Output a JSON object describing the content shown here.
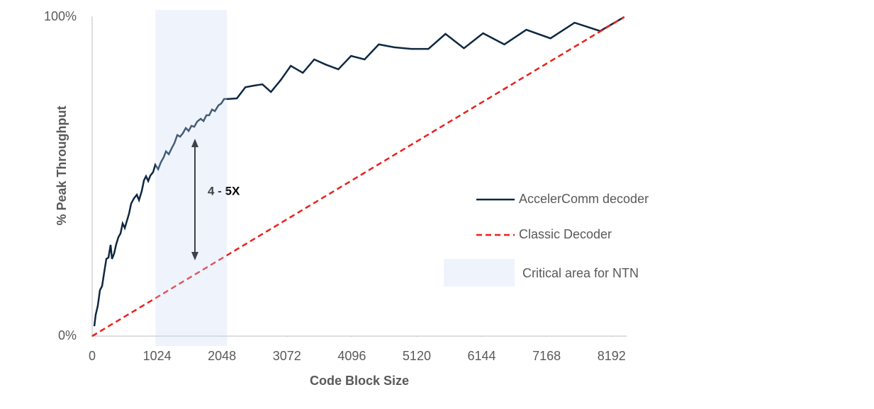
{
  "chart_data": {
    "type": "line",
    "x_label": "Code Block Size",
    "y_label": "% Peak Throughput",
    "xlim": [
      0,
      8430
    ],
    "ylim": [
      0,
      100
    ],
    "xticks": [
      0,
      1024,
      2048,
      3072,
      4096,
      5120,
      6144,
      7168,
      8192
    ],
    "yticks": [
      {
        "value": 0,
        "label": "0%"
      },
      {
        "value": 100,
        "label": "100%"
      }
    ],
    "annotation": "4 - 5X",
    "highlight": {
      "name": "Critical area for NTN",
      "xlim": [
        1000,
        2125
      ],
      "color": "#c9dbf6"
    },
    "series": [
      {
        "name": "AccelerComm decoder",
        "color": "#0e2841",
        "dash": false,
        "x": [
          34,
          56,
          89,
          123,
          157,
          190,
          224,
          257,
          291,
          313,
          347,
          380,
          414,
          448,
          481,
          515,
          548,
          582,
          615,
          660,
          705,
          739,
          783,
          817,
          850,
          884,
          918,
          962,
          996,
          1041,
          1085,
          1130,
          1164,
          1209,
          1253,
          1298,
          1343,
          1388,
          1432,
          1477,
          1522,
          1567,
          1611,
          1656,
          1712,
          1757,
          1802,
          1846,
          1891,
          1936,
          1992,
          2037,
          2081,
          2148,
          2283,
          2417,
          2551,
          2686,
          2820,
          2977,
          3133,
          3323,
          3503,
          3682,
          3883,
          4084,
          4297,
          4521,
          4767,
          5036,
          5304,
          5573,
          5864,
          6166,
          6501,
          6848,
          7229,
          7609,
          8012,
          8393
        ],
        "values": [
          3.1,
          6.7,
          9.5,
          14.4,
          15.7,
          20.0,
          24.2,
          24.6,
          28.6,
          24.2,
          25.9,
          28.8,
          31.0,
          32.2,
          35.3,
          33.9,
          36.1,
          38.4,
          41.5,
          43.2,
          44.3,
          42.6,
          45.5,
          48.8,
          50.1,
          48.6,
          50.3,
          51.4,
          53.7,
          52.3,
          54.5,
          56.1,
          57.9,
          57.0,
          58.8,
          60.5,
          63.0,
          62.5,
          63.6,
          65.2,
          64.3,
          65.9,
          65.6,
          67.2,
          68.1,
          67.4,
          69.2,
          69.2,
          71.0,
          70.5,
          72.3,
          72.9,
          74.3,
          74.3,
          74.5,
          78.0,
          78.5,
          78.9,
          76.5,
          80.3,
          84.7,
          82.5,
          86.7,
          85.1,
          83.6,
          87.8,
          86.7,
          91.4,
          90.5,
          90.0,
          90.0,
          94.7,
          90.2,
          94.9,
          91.4,
          96.0,
          93.3,
          98.2,
          95.6,
          100.0
        ]
      },
      {
        "name": "Classic Decoder",
        "color": "#e8211d",
        "dash": true,
        "x": [
          0,
          8393
        ],
        "values": [
          0,
          100
        ]
      }
    ]
  }
}
